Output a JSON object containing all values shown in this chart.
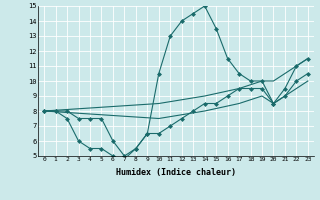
{
  "xlabel": "Humidex (Indice chaleur)",
  "xlim": [
    -0.5,
    23.5
  ],
  "ylim": [
    5,
    15
  ],
  "yticks": [
    5,
    6,
    7,
    8,
    9,
    10,
    11,
    12,
    13,
    14,
    15
  ],
  "xticks": [
    0,
    1,
    2,
    3,
    4,
    5,
    6,
    7,
    8,
    9,
    10,
    11,
    12,
    13,
    14,
    15,
    16,
    17,
    18,
    19,
    20,
    21,
    22,
    23
  ],
  "bg_color": "#cce9ea",
  "line_color": "#1a6b6b",
  "lines": [
    {
      "x": [
        0,
        1,
        2,
        3,
        4,
        5,
        6,
        7,
        8,
        9,
        10,
        11,
        12,
        13,
        14,
        15,
        16,
        17,
        18,
        19,
        20,
        21,
        22,
        23
      ],
      "y": [
        8,
        8,
        8,
        7.5,
        7.5,
        7.5,
        6,
        5,
        5.5,
        6.5,
        10.5,
        13,
        14,
        14.5,
        15,
        13.5,
        11.5,
        10.5,
        10,
        10,
        8.5,
        9.5,
        11,
        11.5
      ],
      "marker": "D",
      "markersize": 2
    },
    {
      "x": [
        0,
        1,
        2,
        3,
        4,
        5,
        6,
        7,
        8,
        9,
        10,
        11,
        12,
        13,
        14,
        15,
        16,
        17,
        18,
        19,
        20,
        21,
        22,
        23
      ],
      "y": [
        8,
        8,
        7.5,
        6.0,
        5.5,
        5.5,
        5.0,
        4.8,
        5.5,
        6.5,
        6.5,
        7.0,
        7.5,
        8.0,
        8.5,
        8.5,
        9.0,
        9.5,
        9.5,
        9.5,
        8.5,
        9.0,
        10.0,
        10.5
      ],
      "marker": "D",
      "markersize": 2
    },
    {
      "x": [
        0,
        10,
        14,
        17,
        19,
        20,
        21,
        22,
        23
      ],
      "y": [
        8,
        8.5,
        9.0,
        9.5,
        10.0,
        10.0,
        10.5,
        11.0,
        11.5
      ],
      "marker": null,
      "markersize": 0
    },
    {
      "x": [
        0,
        10,
        14,
        17,
        19,
        20,
        21,
        22,
        23
      ],
      "y": [
        8,
        7.5,
        8.0,
        8.5,
        9.0,
        8.5,
        9.0,
        9.5,
        10.0
      ],
      "marker": null,
      "markersize": 0
    }
  ]
}
